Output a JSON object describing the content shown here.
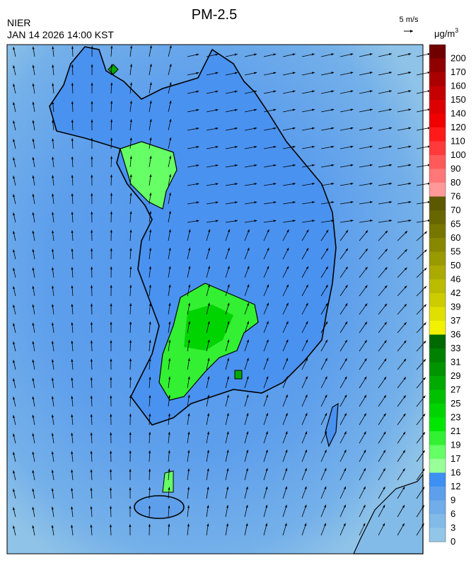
{
  "header": {
    "title": "PM-2.5",
    "agency": "NIER",
    "time": "JAN 14 2026 14:00 KST",
    "vector_scale": "5 m/s"
  },
  "legend": {
    "unit": "μg/m",
    "unit_power": "3",
    "bins": [
      {
        "label": "0",
        "color": "#92c6e8"
      },
      {
        "label": "3",
        "color": "#82bbe8"
      },
      {
        "label": "6",
        "color": "#70ade9"
      },
      {
        "label": "9",
        "color": "#5e9fec"
      },
      {
        "label": "12",
        "color": "#3d8ff2"
      },
      {
        "label": "16",
        "color": "#99ff99"
      },
      {
        "label": "17",
        "color": "#66ff66"
      },
      {
        "label": "19",
        "color": "#33f033"
      },
      {
        "label": "21",
        "color": "#00e600"
      },
      {
        "label": "23",
        "color": "#00d400"
      },
      {
        "label": "25",
        "color": "#00c000"
      },
      {
        "label": "27",
        "color": "#00aa00"
      },
      {
        "label": "29",
        "color": "#009400"
      },
      {
        "label": "31",
        "color": "#008000"
      },
      {
        "label": "33",
        "color": "#006a00"
      },
      {
        "label": "36",
        "color": "#f2f200"
      },
      {
        "label": "37",
        "color": "#e0e000"
      },
      {
        "label": "39",
        "color": "#cccc00"
      },
      {
        "label": "42",
        "color": "#bbbb00"
      },
      {
        "label": "46",
        "color": "#aaaa00"
      },
      {
        "label": "50",
        "color": "#999900"
      },
      {
        "label": "55",
        "color": "#888800"
      },
      {
        "label": "60",
        "color": "#777700"
      },
      {
        "label": "65",
        "color": "#686600"
      },
      {
        "label": "70",
        "color": "#5c5800"
      },
      {
        "label": "76",
        "color": "#ff9999"
      },
      {
        "label": "80",
        "color": "#ff7777"
      },
      {
        "label": "90",
        "color": "#ff5a5a"
      },
      {
        "label": "100",
        "color": "#ff3a3a"
      },
      {
        "label": "110",
        "color": "#ff1a1a"
      },
      {
        "label": "120",
        "color": "#f00000"
      },
      {
        "label": "140",
        "color": "#dd0000"
      },
      {
        "label": "150",
        "color": "#c40000"
      },
      {
        "label": "160",
        "color": "#aa0000"
      },
      {
        "label": "170",
        "color": "#900000"
      },
      {
        "label": "200",
        "color": "#700000"
      }
    ]
  }
}
